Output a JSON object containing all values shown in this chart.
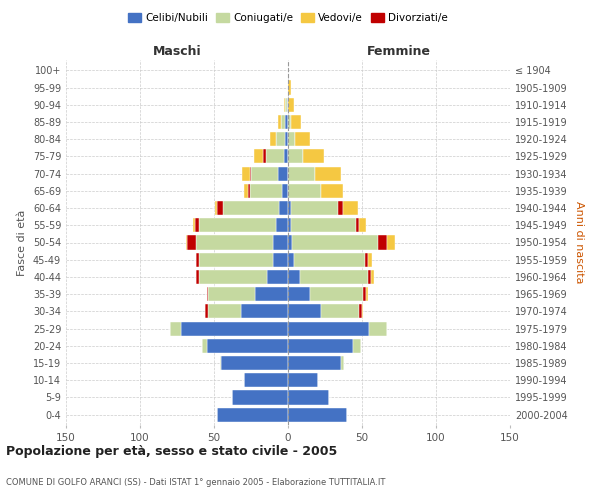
{
  "age_groups": [
    "100+",
    "95-99",
    "90-94",
    "85-89",
    "80-84",
    "75-79",
    "70-74",
    "65-69",
    "60-64",
    "55-59",
    "50-54",
    "45-49",
    "40-44",
    "35-39",
    "30-34",
    "25-29",
    "20-24",
    "15-19",
    "10-14",
    "5-9",
    "0-4"
  ],
  "birth_years": [
    "≤ 1904",
    "1905-1909",
    "1910-1914",
    "1915-1919",
    "1920-1924",
    "1925-1929",
    "1930-1934",
    "1935-1939",
    "1940-1944",
    "1945-1949",
    "1950-1954",
    "1955-1959",
    "1960-1964",
    "1965-1969",
    "1970-1974",
    "1975-1979",
    "1980-1984",
    "1985-1989",
    "1990-1994",
    "1995-1999",
    "2000-2004"
  ],
  "maschi": {
    "celibi": [
      0,
      0,
      1,
      2,
      2,
      3,
      7,
      4,
      6,
      8,
      10,
      10,
      14,
      22,
      32,
      72,
      55,
      45,
      30,
      38,
      48
    ],
    "coniugati": [
      0,
      0,
      1,
      3,
      6,
      12,
      18,
      22,
      38,
      52,
      52,
      50,
      46,
      32,
      22,
      8,
      3,
      1,
      0,
      0,
      0
    ],
    "vedovi": [
      0,
      0,
      1,
      2,
      4,
      6,
      5,
      3,
      1,
      1,
      1,
      0,
      0,
      0,
      0,
      0,
      0,
      0,
      0,
      0,
      0
    ],
    "divorziati": [
      0,
      0,
      0,
      0,
      0,
      2,
      1,
      1,
      4,
      3,
      6,
      2,
      2,
      1,
      2,
      0,
      0,
      0,
      0,
      0,
      0
    ]
  },
  "femmine": {
    "nubili": [
      0,
      0,
      0,
      0,
      0,
      0,
      0,
      0,
      2,
      2,
      3,
      4,
      8,
      15,
      22,
      55,
      44,
      36,
      20,
      28,
      40
    ],
    "coniugate": [
      0,
      0,
      0,
      2,
      5,
      10,
      18,
      22,
      32,
      44,
      58,
      48,
      46,
      36,
      26,
      12,
      5,
      2,
      0,
      0,
      0
    ],
    "vedove": [
      0,
      2,
      4,
      7,
      10,
      14,
      18,
      15,
      10,
      5,
      5,
      3,
      2,
      1,
      1,
      0,
      0,
      0,
      0,
      0,
      0
    ],
    "divorziate": [
      0,
      0,
      0,
      0,
      0,
      0,
      0,
      0,
      3,
      2,
      6,
      2,
      2,
      2,
      2,
      0,
      0,
      0,
      0,
      0,
      0
    ]
  },
  "colors": {
    "celibi_nubili": "#4472c4",
    "coniugati": "#c5d9a0",
    "vedovi": "#f5c842",
    "divorziati": "#c00000"
  },
  "xlim": 150,
  "xlabel_maschi": "Maschi",
  "xlabel_femmine": "Femmine",
  "ylabel_left": "Fasce di età",
  "ylabel_right": "Anni di nascita",
  "title": "Popolazione per età, sesso e stato civile - 2005",
  "subtitle": "COMUNE DI GOLFO ARANCI (SS) - Dati ISTAT 1° gennaio 2005 - Elaborazione TUTTITALIA.IT",
  "legend_labels": [
    "Celibi/Nubili",
    "Coniugati/e",
    "Vedovi/e",
    "Divorziati/e"
  ],
  "grid_color": "#cccccc",
  "bg_color": "#ffffff",
  "bar_height": 0.82,
  "fig_width": 6.0,
  "fig_height": 5.0
}
